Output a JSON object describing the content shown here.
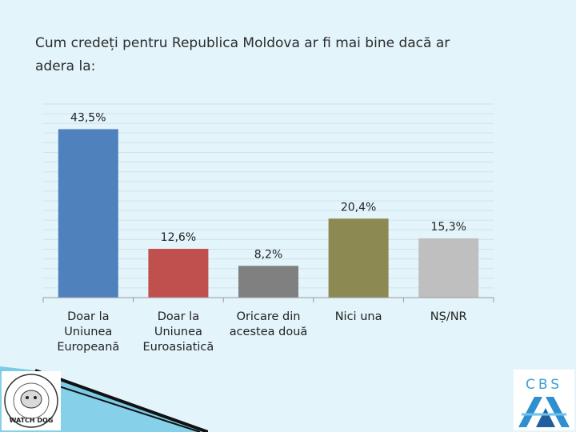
{
  "title": "Cum credeți pentru Republica Moldova ar fi mai bine dacă ar\nadera la:",
  "chart_data": {
    "type": "bar",
    "categories": [
      [
        "Doar la",
        "Uniunea",
        "Europeană"
      ],
      [
        "Doar la",
        "Uniunea",
        "Euroasiatică"
      ],
      [
        "Oricare din",
        "acestea două"
      ],
      [
        "Nici una"
      ],
      [
        "NȘ/NR"
      ]
    ],
    "values": [
      43.5,
      12.6,
      8.2,
      20.4,
      15.3
    ],
    "data_labels": [
      "43,5%",
      "12,6%",
      "8,2%",
      "20,4%",
      "15,3%"
    ],
    "colors": [
      "#4f81bd",
      "#c0504d",
      "#808080",
      "#8c8a52",
      "#bfbfbf"
    ],
    "ylim": [
      0,
      50
    ],
    "grid": true,
    "legend": "none"
  },
  "logos": {
    "left": {
      "icon": "watchdog-seal-icon",
      "text": "WATCH DOG"
    },
    "right": {
      "icon": "cbs-axa-logo-icon",
      "text": "CBS"
    }
  }
}
